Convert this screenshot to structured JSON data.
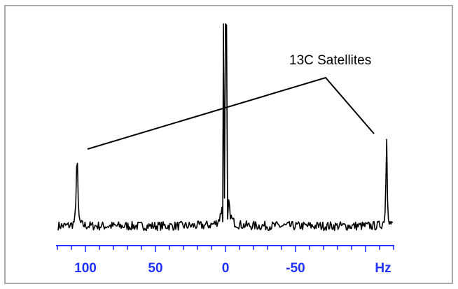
{
  "chart_data": {
    "type": "line",
    "title": "",
    "xlabel": "Hz",
    "ylabel": "",
    "x_reversed": true,
    "xlim": [
      120,
      -130
    ],
    "x_ticks": [
      100,
      50,
      0,
      -50
    ],
    "x_tick_labels": [
      "100",
      "50",
      "0",
      "-50"
    ],
    "x_minor_step": 10,
    "ylim": [
      0,
      1
    ],
    "grid": false,
    "series": [
      {
        "peaks": [
          {
            "x": 106,
            "height": 0.43
          },
          {
            "x": 0,
            "height": 1.0
          },
          {
            "x": -115,
            "height": 0.46
          }
        ],
        "baseline": 0.03
      }
    ],
    "annotations": [
      {
        "text": "13C Satellites",
        "points_to": [
          106,
          -115
        ]
      }
    ],
    "colors": {
      "axis": "#2233ff",
      "trace": "#000000",
      "frame": "#a9a9a9"
    }
  }
}
